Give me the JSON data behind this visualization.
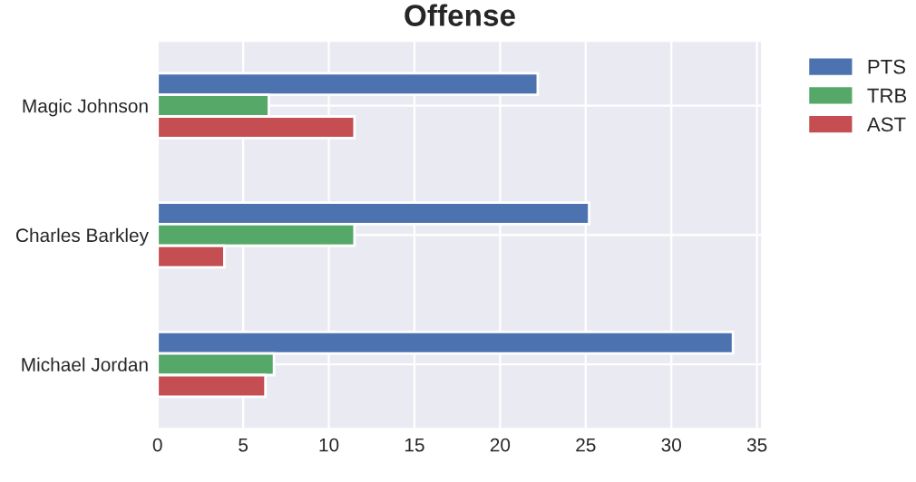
{
  "chart_data": {
    "type": "bar",
    "orientation": "horizontal",
    "title": "Offense",
    "categories": [
      "Magic Johnson",
      "Charles Barkley",
      "Michael Jordan"
    ],
    "series": [
      {
        "name": "PTS",
        "color": "#4c72b0",
        "values": [
          22.2,
          25.2,
          33.6
        ]
      },
      {
        "name": "TRB",
        "color": "#55a868",
        "values": [
          6.5,
          11.5,
          6.8
        ]
      },
      {
        "name": "AST",
        "color": "#c44e52",
        "values": [
          11.5,
          3.9,
          6.3
        ]
      }
    ],
    "xlim": [
      0,
      35.3
    ],
    "xticks": [
      0,
      5,
      10,
      15,
      20,
      25,
      30,
      35
    ],
    "grid": true,
    "legend": "top right"
  }
}
